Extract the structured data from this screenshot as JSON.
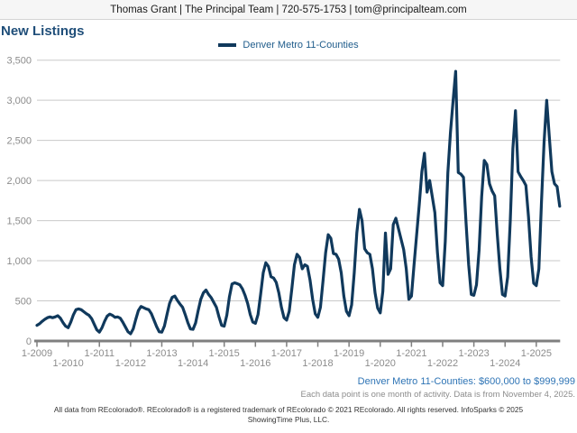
{
  "header": {
    "contact": "Thomas Grant | The Principal Team | 720-575-1753 | tom@principalteam.com"
  },
  "title": "New Listings",
  "legend": {
    "label": "Denver Metro 11-Counties",
    "swatch_color": "#10395c"
  },
  "footnotes": {
    "range_label": "Denver Metro 11-Counties: $600,000 to $999,999",
    "data_note": "Each data point is one month of activity. Data is from November 4, 2025.",
    "disclaimer_line1": "All data from REcolorado®. REcolorado® is a registered trademark of REcolorado © 2021 REcolorado. All rights reserved. InfoSparks © 2025",
    "disclaimer_line2": "ShowingTime Plus, LLC."
  },
  "colors": {
    "line": "#10395c",
    "title_blue": "#1f4e79",
    "legend_text": "#1f5c8b",
    "footnote_blue": "#2e74b5",
    "axis_text": "#8c8c8c",
    "gridline": "#c9c9c9",
    "axis_line": "#7f7f7f"
  },
  "chart_data": {
    "type": "line",
    "title": "New Listings",
    "xlabel": "",
    "ylabel": "",
    "ylim": [
      0,
      3500
    ],
    "y_ticks": [
      0,
      500,
      1000,
      1500,
      2000,
      2500,
      3000,
      3500
    ],
    "grid": "horizontal",
    "legend_position": "top-center",
    "x_unit": "month",
    "x_start": "2009-01",
    "x_end": "2025-10",
    "x_tick_labels": [
      "1-2009",
      "1-2010",
      "1-2011",
      "1-2012",
      "1-2013",
      "1-2014",
      "1-2015",
      "1-2016",
      "1-2017",
      "1-2018",
      "1-2019",
      "1-2020",
      "1-2021",
      "1-2022",
      "1-2023",
      "1-2024",
      "1-2025"
    ],
    "series": [
      {
        "name": "Denver Metro 11-Counties",
        "color": "#10395c",
        "values": [
          195,
          215,
          245,
          270,
          290,
          300,
          290,
          300,
          315,
          285,
          230,
          185,
          165,
          235,
          325,
          390,
          400,
          390,
          365,
          340,
          320,
          280,
          210,
          140,
          110,
          165,
          245,
          310,
          335,
          320,
          295,
          300,
          285,
          235,
          175,
          115,
          90,
          150,
          270,
          380,
          430,
          415,
          400,
          390,
          340,
          260,
          180,
          115,
          110,
          185,
          330,
          470,
          545,
          560,
          505,
          460,
          420,
          330,
          230,
          150,
          145,
          225,
          380,
          520,
          600,
          635,
          580,
          540,
          480,
          420,
          300,
          195,
          185,
          320,
          550,
          710,
          725,
          715,
          700,
          650,
          570,
          470,
          330,
          235,
          220,
          330,
          580,
          850,
          975,
          930,
          800,
          785,
          730,
          600,
          420,
          290,
          260,
          370,
          650,
          950,
          1080,
          1040,
          900,
          950,
          930,
          760,
          520,
          340,
          295,
          420,
          750,
          1100,
          1325,
          1280,
          1090,
          1080,
          1020,
          850,
          560,
          370,
          315,
          450,
          850,
          1350,
          1640,
          1500,
          1150,
          1100,
          1080,
          900,
          600,
          410,
          350,
          620,
          1345,
          830,
          900,
          1450,
          1530,
          1400,
          1270,
          1140,
          900,
          520,
          560,
          950,
          1325,
          1700,
          2110,
          2340,
          1855,
          2000,
          1800,
          1600,
          1100,
          725,
          690,
          1240,
          2100,
          2600,
          2990,
          3360,
          2100,
          2080,
          2040,
          1470,
          950,
          580,
          570,
          700,
          1130,
          1800,
          2250,
          2200,
          1960,
          1870,
          1810,
          1330,
          900,
          580,
          560,
          800,
          1500,
          2400,
          2870,
          2110,
          2050,
          2000,
          1940,
          1550,
          1050,
          720,
          690,
          900,
          1735,
          2480,
          3000,
          2550,
          2110,
          1960,
          1925,
          1680
        ]
      }
    ]
  }
}
